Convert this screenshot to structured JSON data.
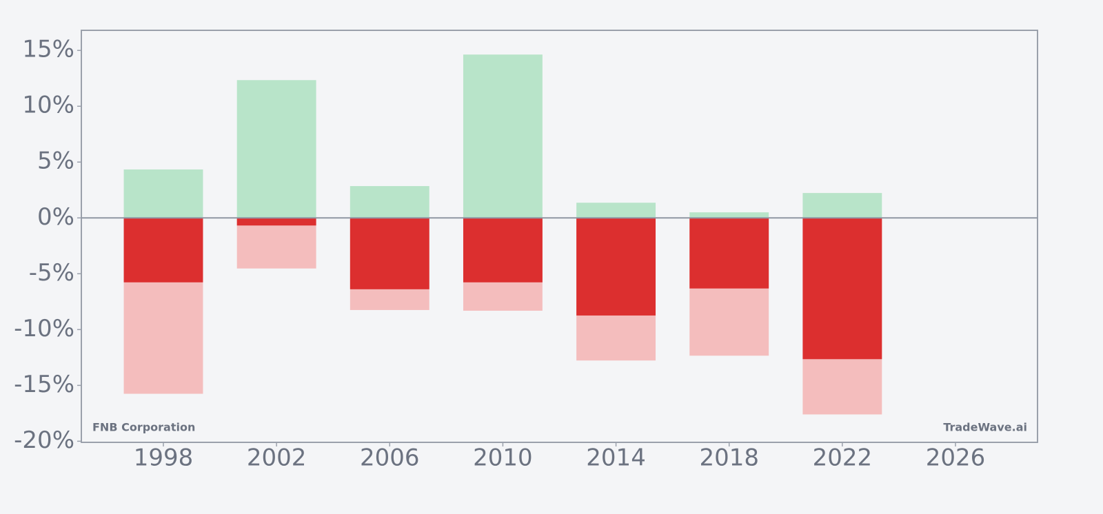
{
  "chart_data": {
    "type": "bar",
    "annotations": [
      "FNB Corporation",
      "TradeWave.ai"
    ],
    "x": [
      1998,
      2002,
      2006,
      2010,
      2014,
      2018,
      2022
    ],
    "series": [
      {
        "color": "#b8e4c9",
        "values": [
          4.34,
          12.34,
          2.85,
          14.63,
          1.36,
          0.5,
          2.23
        ]
      },
      {
        "color": "#f4bdbd",
        "values": [
          -15.75,
          -4.53,
          -8.25,
          -8.31,
          -12.77,
          -12.34,
          -17.6
        ]
      },
      {
        "color": "#dc2f2f",
        "values": [
          -5.77,
          -0.68,
          -6.39,
          -5.77,
          -8.74,
          -6.32,
          -12.65
        ]
      }
    ],
    "xlim": [
      1995.1,
      2028.9
    ],
    "xticks": [
      1998,
      2002,
      2006,
      2010,
      2014,
      2018,
      2022,
      2026
    ],
    "ylim": [
      -20.1,
      16.8
    ],
    "yticks": [
      {
        "value": 15,
        "label": "15%"
      },
      {
        "value": 10,
        "label": "10%"
      },
      {
        "value": 5,
        "label": "5%"
      },
      {
        "value": 0,
        "label": "0%"
      },
      {
        "value": -5,
        "label": "-5%"
      },
      {
        "value": -10,
        "label": "-10%"
      },
      {
        "value": -15,
        "label": "-15%"
      },
      {
        "value": -20,
        "label": "-20%"
      }
    ]
  }
}
